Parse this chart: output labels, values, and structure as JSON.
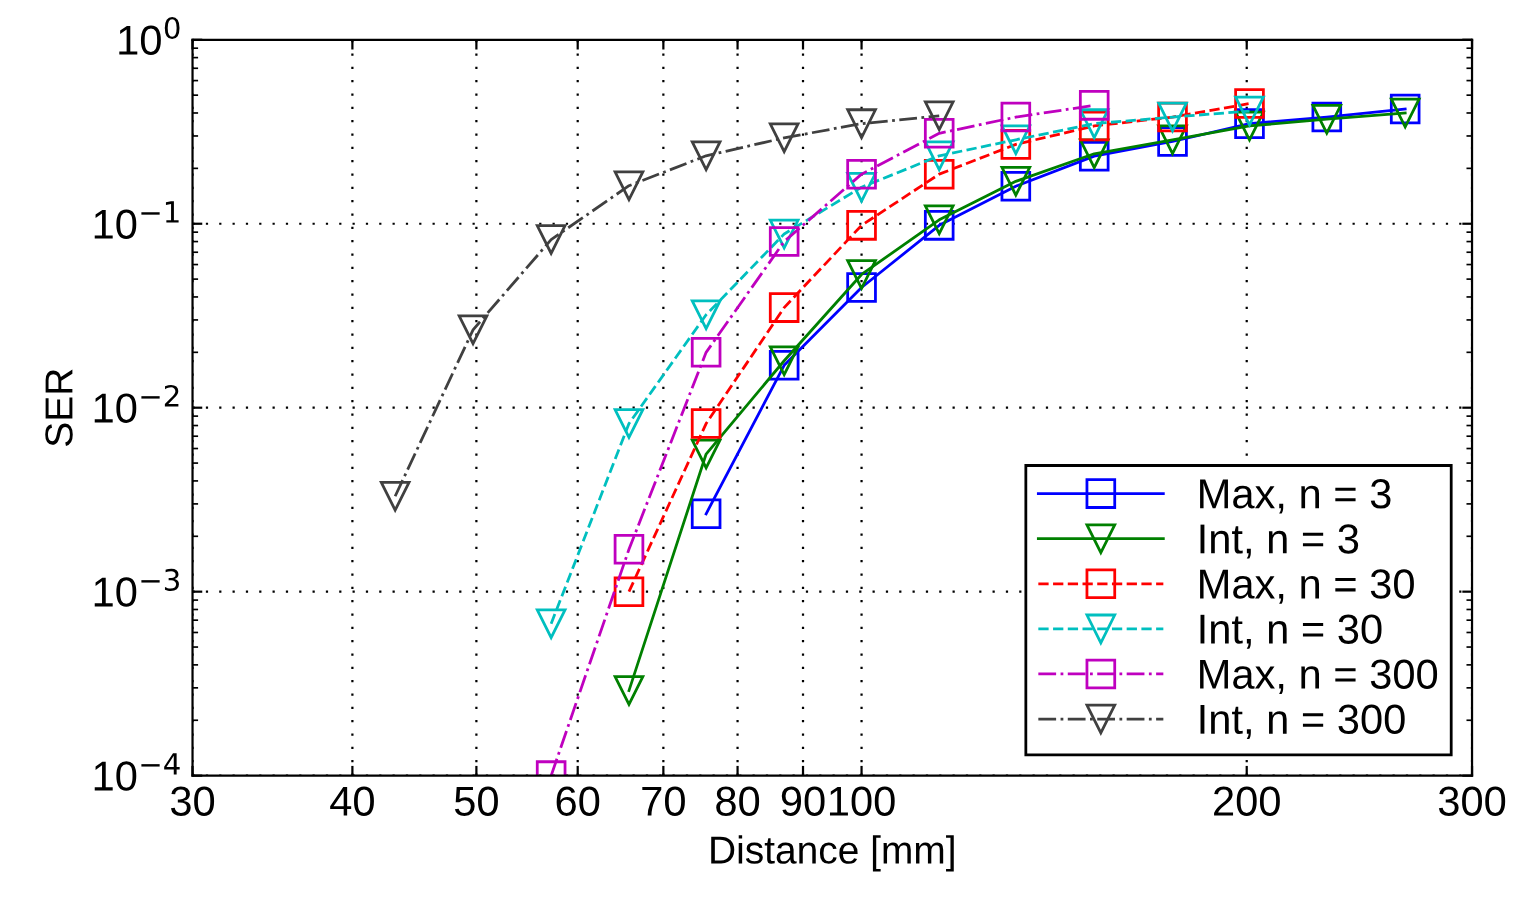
{
  "chart_data": {
    "type": "line",
    "xlabel": "Distance [mm]",
    "ylabel": "SER",
    "log": "xy",
    "grid": true,
    "legend": "bottom right",
    "xlim": [
      30,
      300
    ],
    "xticks": [
      30,
      40,
      50,
      60,
      70,
      80,
      90,
      100,
      200,
      300
    ],
    "ylim": [
      0.0001,
      1
    ],
    "yticks": [
      {
        "value": 0.0001,
        "label": "10$^{−4}$"
      },
      {
        "value": 0.001,
        "label": "10$^{−3}$"
      },
      {
        "value": 0.01,
        "label": "10$^{−2}$"
      },
      {
        "value": 0.1,
        "label": "10$^{−1}$"
      },
      {
        "value": 1,
        "label": "10$^{0}$"
      }
    ],
    "series": [
      {
        "name": "Max, n = 3",
        "color": "#0000ff",
        "marker": "square",
        "line_style": "solid",
        "x": [
          75.6,
          87,
          100,
          115,
          132,
          152,
          175,
          201,
          231,
          266
        ],
        "values": [
          0.00265,
          0.017,
          0.045,
          0.098,
          0.16,
          0.233,
          0.28,
          0.35,
          0.38,
          0.42
        ]
      },
      {
        "name": "Int, n = 3",
        "color": "#008000",
        "marker": "triangle",
        "line_style": "solid",
        "x": [
          65.8,
          75.6,
          87,
          100,
          115,
          132,
          152,
          175,
          201,
          231,
          266
        ],
        "values": [
          0.00029,
          0.0056,
          0.018,
          0.053,
          0.105,
          0.17,
          0.24,
          0.286,
          0.34,
          0.37,
          0.4
        ]
      },
      {
        "name": "Max, n = 30",
        "color": "#ff0000",
        "marker": "square",
        "line_style": "dashed",
        "x": [
          65.8,
          75.6,
          87,
          100,
          115,
          132,
          152,
          175,
          201
        ],
        "values": [
          0.001,
          0.0082,
          0.035,
          0.098,
          0.186,
          0.27,
          0.34,
          0.38,
          0.45
        ]
      },
      {
        "name": "Int, n = 30",
        "color": "#00bfbf",
        "marker": "triangle",
        "line_style": "dashed",
        "x": [
          57.2,
          65.8,
          75.6,
          87,
          100,
          115,
          132,
          152,
          175,
          201
        ],
        "values": [
          0.00067,
          0.0082,
          0.032,
          0.088,
          0.158,
          0.234,
          0.286,
          0.35,
          0.38,
          0.41
        ]
      },
      {
        "name": "Max, n = 300",
        "color": "#bf00bf",
        "marker": "square",
        "line_style": "dashdot",
        "x": [
          57.2,
          65.8,
          75.6,
          87,
          100,
          115,
          132,
          152
        ],
        "values": [
          0.0001,
          0.0017,
          0.02,
          0.08,
          0.186,
          0.31,
          0.38,
          0.44
        ]
      },
      {
        "name": "Int, n = 300",
        "color": "#404040",
        "marker": "triangle",
        "line_style": "dashdot",
        "x": [
          43.2,
          49.7,
          57.2,
          65.8,
          75.6,
          87,
          100,
          115
        ],
        "values": [
          0.0033,
          0.0265,
          0.082,
          0.161,
          0.234,
          0.293,
          0.35,
          0.386
        ]
      }
    ]
  }
}
